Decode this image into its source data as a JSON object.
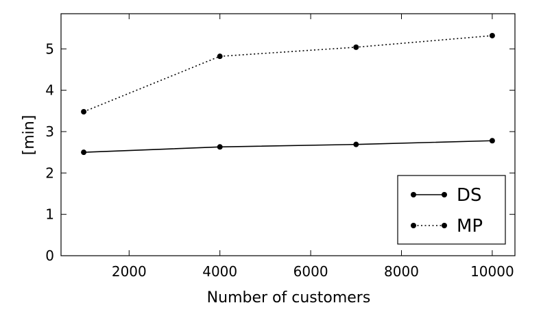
{
  "chart_data": {
    "type": "line",
    "title": "",
    "xlabel": "Number of customers",
    "ylabel": "[min]",
    "x": [
      1000,
      4000,
      7000,
      10000
    ],
    "xlim": [
      500,
      10500
    ],
    "ylim": [
      0,
      5.85
    ],
    "xticks": [
      2000,
      4000,
      6000,
      8000,
      10000
    ],
    "yticks": [
      0,
      1,
      2,
      3,
      4,
      5
    ],
    "grid": false,
    "legend_position": "lower-right",
    "series": [
      {
        "name": "DS",
        "values": [
          2.5,
          2.63,
          2.69,
          2.78
        ],
        "line_style": "solid",
        "marker": "circle",
        "color": "#000000"
      },
      {
        "name": "MP",
        "values": [
          3.48,
          4.82,
          5.04,
          5.32
        ],
        "line_style": "dotted",
        "marker": "circle",
        "color": "#000000"
      }
    ]
  }
}
